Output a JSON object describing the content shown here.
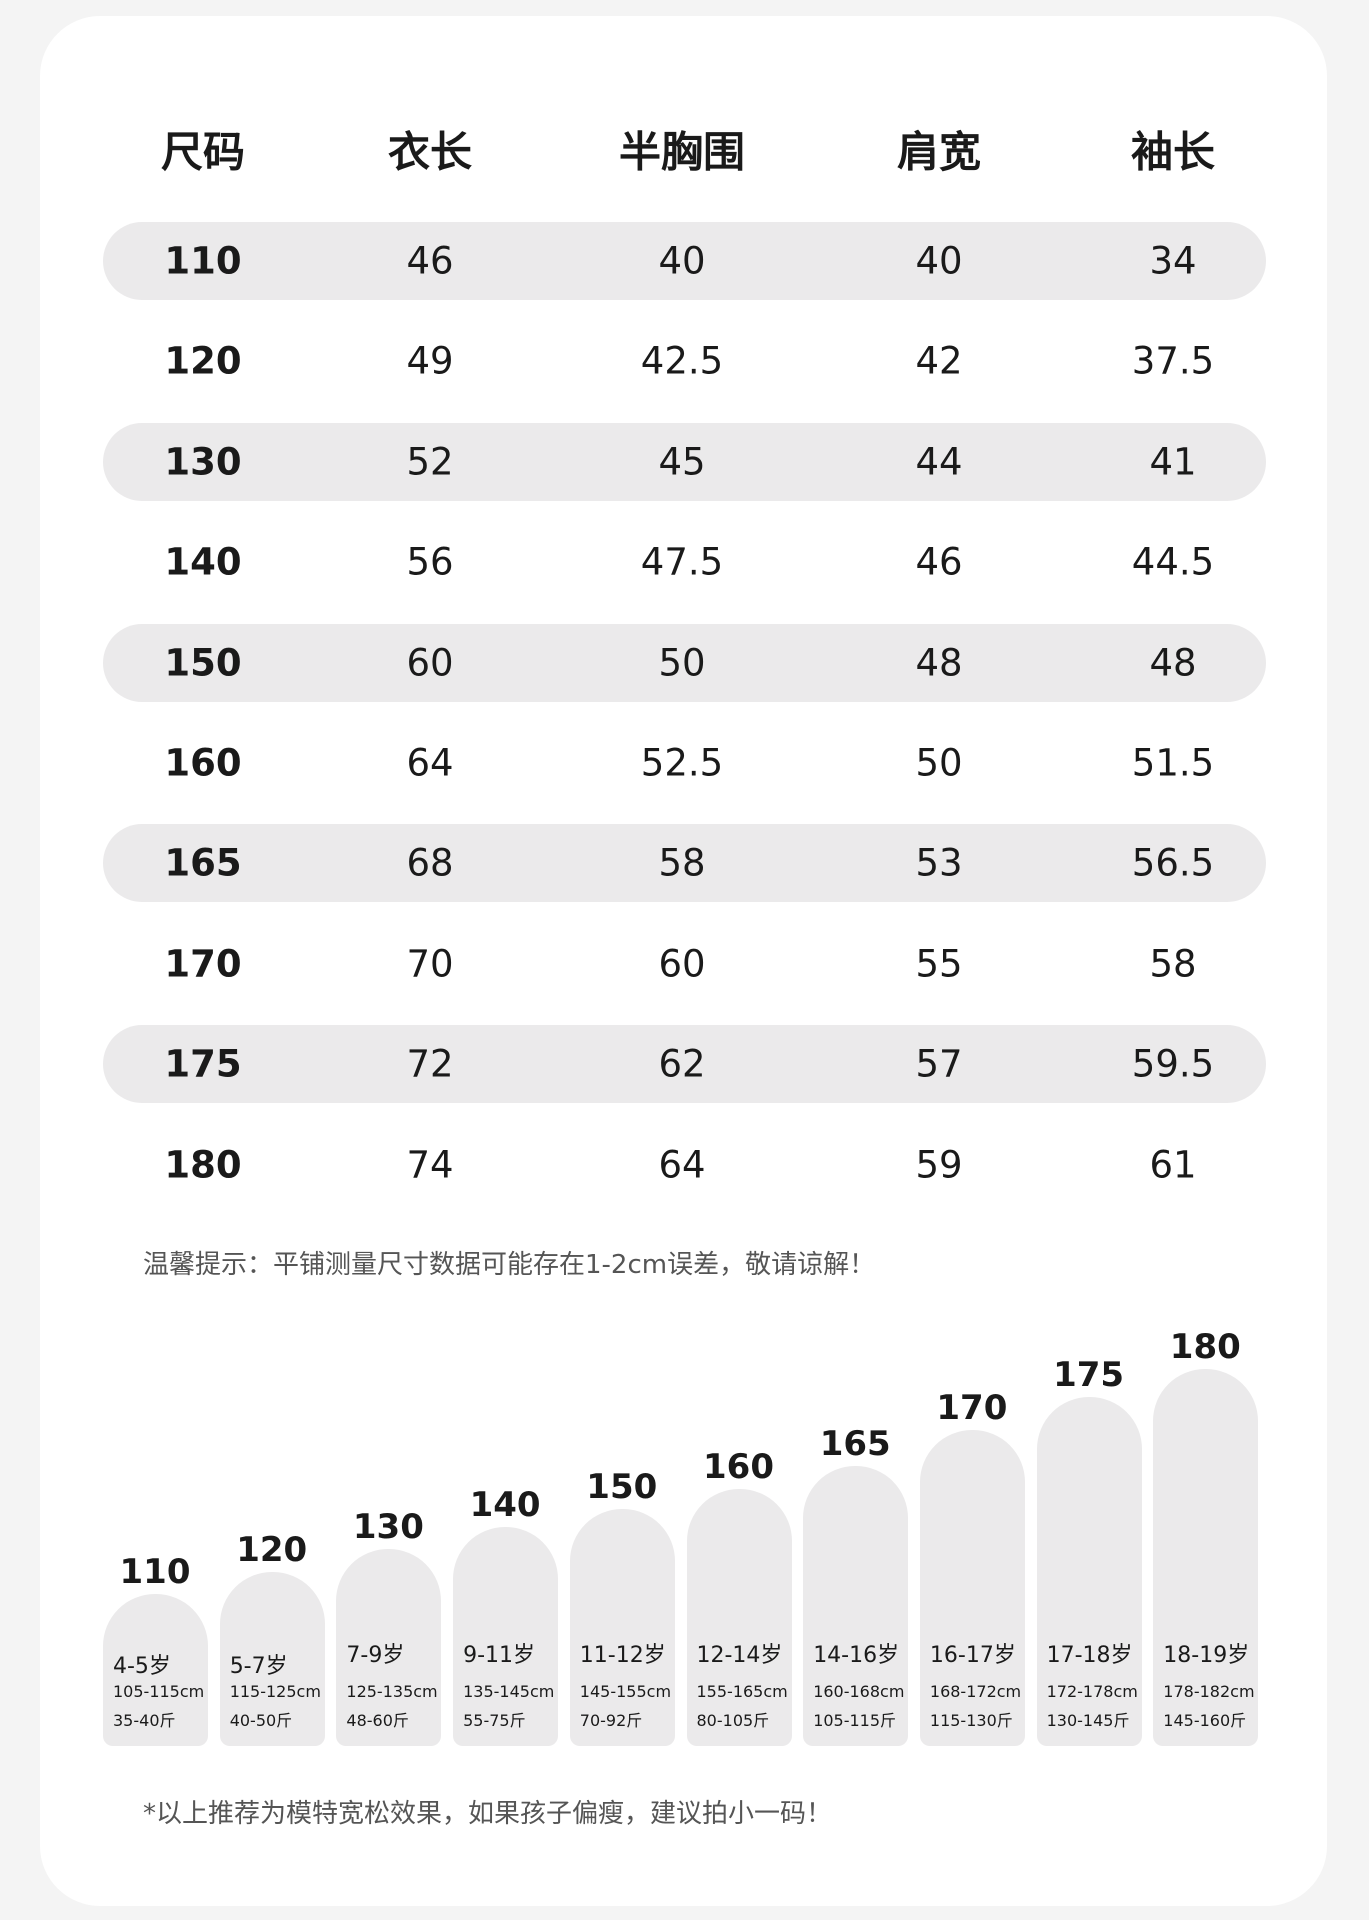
{
  "table": {
    "headers": [
      "尺码",
      "衣长",
      "半胸围",
      "肩宽",
      "袖长"
    ],
    "rows": [
      [
        110,
        46,
        40,
        40,
        34
      ],
      [
        120,
        49,
        42.5,
        42,
        37.5
      ],
      [
        130,
        52,
        45,
        44,
        41
      ],
      [
        140,
        56,
        47.5,
        46,
        44.5
      ],
      [
        150,
        60,
        50,
        48,
        48
      ],
      [
        160,
        64,
        52.5,
        50,
        51.5
      ],
      [
        165,
        68,
        58,
        53,
        56.5
      ],
      [
        170,
        70,
        60,
        55,
        58
      ],
      [
        175,
        72,
        62,
        57,
        59.5
      ],
      [
        180,
        74,
        64,
        59,
        61
      ]
    ]
  },
  "note": "温馨提示：平铺测量尺寸数据可能存在1-2cm误差，敬请谅解！",
  "recommendations": [
    {
      "size": 110,
      "age": "4-5岁",
      "height": "105-115cm",
      "weight": "35-40斤"
    },
    {
      "size": 120,
      "age": "5-7岁",
      "height": "115-125cm",
      "weight": "40-50斤"
    },
    {
      "size": 130,
      "age": "7-9岁",
      "height": "125-135cm",
      "weight": "48-60斤"
    },
    {
      "size": 140,
      "age": "9-11岁",
      "height": "135-145cm",
      "weight": "55-75斤"
    },
    {
      "size": 150,
      "age": "11-12岁",
      "height": "145-155cm",
      "weight": "70-92斤"
    },
    {
      "size": 160,
      "age": "12-14岁",
      "height": "155-165cm",
      "weight": "80-105斤"
    },
    {
      "size": 165,
      "age": "14-16岁",
      "height": "160-168cm",
      "weight": "105-115斤"
    },
    {
      "size": 170,
      "age": "16-17岁",
      "height": "168-172cm",
      "weight": "115-130斤"
    },
    {
      "size": 175,
      "age": "17-18岁",
      "height": "172-178cm",
      "weight": "130-145斤"
    },
    {
      "size": 180,
      "age": "18-19岁",
      "height": "178-182cm",
      "weight": "145-160斤"
    }
  ],
  "footer": "*以上推荐为模特宽松效果，如果孩子偏瘦，建议拍小一码！"
}
